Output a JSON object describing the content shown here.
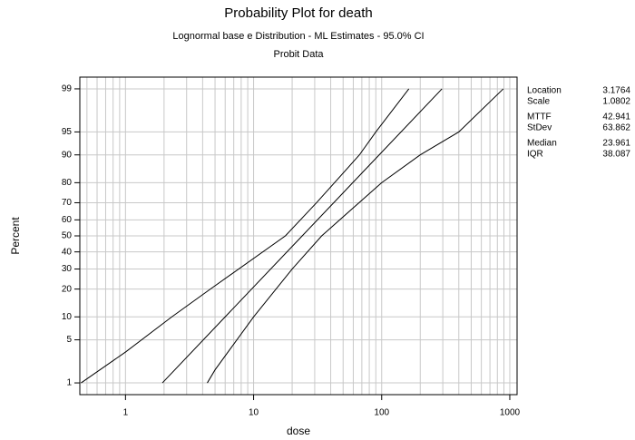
{
  "chart_data": {
    "type": "line",
    "title": "Probability Plot for death",
    "subtitle": "Lognormal base e Distribution - ML Estimates - 95.0% CI",
    "subtitle2": "Probit Data",
    "xlabel": "dose",
    "ylabel": "Percent",
    "xscale": "log",
    "yscale": "probit",
    "grid": true,
    "xlim": [
      0.44,
      1140
    ],
    "ylim": [
      0.6,
      99.4
    ],
    "xticks": [
      1,
      10,
      100,
      1000
    ],
    "xminor": [
      0.5,
      0.6,
      0.7,
      0.8,
      0.9,
      2,
      3,
      4,
      5,
      6,
      7,
      8,
      9,
      20,
      30,
      40,
      50,
      60,
      70,
      80,
      90,
      200,
      300,
      400,
      500,
      600,
      700,
      800,
      900
    ],
    "yticks": [
      1,
      5,
      10,
      20,
      30,
      40,
      50,
      60,
      70,
      80,
      90,
      95,
      99
    ],
    "series": [
      {
        "name": "Upper",
        "color": "#000000",
        "x": [
          0.45,
          1,
          2.3,
          4.6,
          17.7,
          31,
          67,
          90,
          163
        ],
        "values": [
          1,
          3.3,
          10,
          20,
          50,
          70,
          90,
          95,
          99
        ]
      },
      {
        "name": "Fit",
        "color": "#000000",
        "x": [
          1.94,
          23.961,
          295.6
        ],
        "values": [
          1,
          50,
          99
        ]
      },
      {
        "name": "Lower",
        "color": "#000000",
        "x": [
          4.35,
          5,
          10,
          20,
          34,
          100,
          200,
          400,
          890
        ],
        "values": [
          1,
          1.7,
          10,
          30,
          50,
          80,
          90,
          95,
          99
        ]
      }
    ],
    "stats": [
      {
        "label": "Location",
        "value": 3.1764
      },
      {
        "label": "Scale",
        "value": 1.0802
      },
      {
        "label": "MTTF",
        "value": 42.941
      },
      {
        "label": "StDev",
        "value": 63.862
      },
      {
        "label": "Median",
        "value": 23.961
      },
      {
        "label": "IQR",
        "value": 38.087
      }
    ]
  }
}
